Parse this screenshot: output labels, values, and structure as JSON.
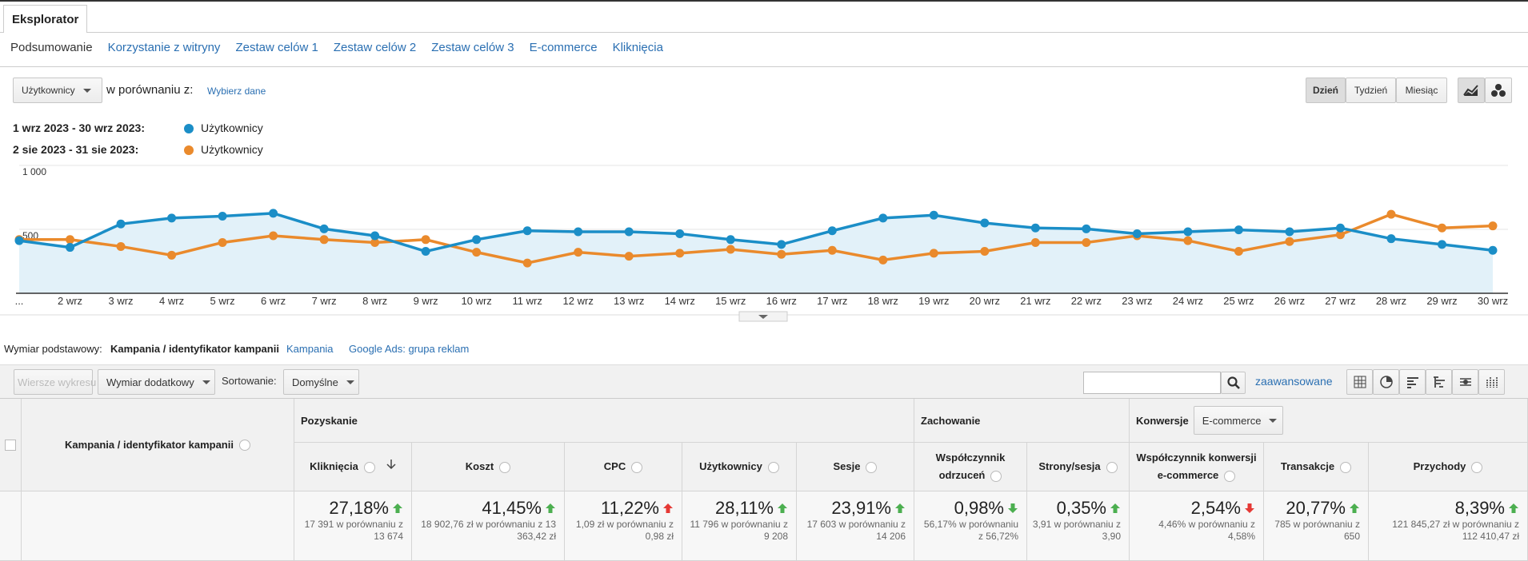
{
  "tabs": {
    "active": "Eksplorator"
  },
  "subtabs": [
    "Podsumowanie",
    "Korzystanie z witryny",
    "Zestaw celów 1",
    "Zestaw celów 2",
    "Zestaw celów 3",
    "E-commerce",
    "Kliknięcia"
  ],
  "controls": {
    "metric": "Użytkownicy",
    "compare_label": "w porównaniu z:",
    "compare_link": "Wybierz dane",
    "periods": [
      "Dzień",
      "Tydzień",
      "Miesiąc"
    ]
  },
  "chart_data": {
    "type": "line",
    "categories": [
      "...",
      "2 wrz",
      "3 wrz",
      "4 wrz",
      "5 wrz",
      "6 wrz",
      "7 wrz",
      "8 wrz",
      "9 wrz",
      "10 wrz",
      "11 wrz",
      "12 wrz",
      "13 wrz",
      "14 wrz",
      "15 wrz",
      "16 wrz",
      "17 wrz",
      "18 wrz",
      "19 wrz",
      "20 wrz",
      "21 wrz",
      "22 wrz",
      "23 wrz",
      "24 wrz",
      "25 wrz",
      "26 wrz",
      "27 wrz",
      "28 wrz",
      "29 wrz",
      "30 wrz"
    ],
    "series": [
      {
        "period": "1 wrz 2023 - 30 wrz 2023:",
        "name": "Użytkownicy",
        "color": "#1b8ec7",
        "area": true,
        "area_color": "#e2f1f9",
        "values": [
          412,
          359,
          542,
          588,
          603,
          626,
          504,
          450,
          328,
          420,
          489,
          481,
          481,
          466,
          420,
          382,
          489,
          588,
          611,
          550,
          511,
          504,
          466,
          481,
          496,
          481,
          511,
          427,
          382,
          336
        ]
      },
      {
        "period": "2 sie 2023 - 31 sie 2023:",
        "name": "Użytkownicy",
        "color": "#ea8a2c",
        "area": false,
        "values": [
          420,
          420,
          366,
          298,
          397,
          450,
          420,
          397,
          420,
          321,
          237,
          321,
          290,
          313,
          344,
          305,
          336,
          260,
          313,
          328,
          397,
          397,
          450,
          412,
          328,
          405,
          458,
          618,
          511,
          527
        ]
      }
    ],
    "ylim": [
      0,
      1000
    ],
    "yticks": [
      500,
      {
        "value": 1000,
        "label": "1 000"
      }
    ],
    "grid": true
  },
  "dimension": {
    "label": "Wymiar podstawowy:",
    "active": "Kampania / identyfikator kampanii",
    "options": [
      "Kampania",
      "Google Ads: grupa reklam"
    ]
  },
  "toolbar": {
    "rows_button": "Wiersze wykresu",
    "secondary": "Wymiar dodatkowy",
    "sort_label": "Sortowanie:",
    "sort_value": "Domyślne",
    "advanced": "zaawansowane"
  },
  "table": {
    "dimension_header": "Kampania / identyfikator kampanii",
    "groups": [
      {
        "name": "Pozyskanie",
        "columns": [
          {
            "name": "Kliknięcia",
            "value": "27,18%",
            "trend": "up",
            "color": "#4caf50",
            "sub": "17 391 w porównaniu z 13 674"
          },
          {
            "name": "Koszt",
            "value": "41,45%",
            "trend": "up",
            "color": "#4caf50",
            "sub": "18 902,76 zł w porównaniu z 13 363,42 zł"
          },
          {
            "name": "CPC",
            "value": "11,22%",
            "trend": "up",
            "color": "#e53935",
            "sub": "1,09 zł w porównaniu z 0,98 zł"
          },
          {
            "name": "Użytkownicy",
            "value": "28,11%",
            "trend": "up",
            "color": "#4caf50",
            "sub": "11 796 w porównaniu z 9 208"
          },
          {
            "name": "Sesje",
            "value": "23,91%",
            "trend": "up",
            "color": "#4caf50",
            "sub": "17 603 w porównaniu z 14 206"
          }
        ]
      },
      {
        "name": "Zachowanie",
        "columns": [
          {
            "name": "Współczynnik odrzuceń",
            "value": "0,98%",
            "trend": "down",
            "color": "#4caf50",
            "sub": "56,17% w porównaniu z 56,72%"
          },
          {
            "name": "Strony/sesja",
            "value": "0,35%",
            "trend": "up",
            "color": "#4caf50",
            "sub": "3,91 w porównaniu z 3,90"
          }
        ]
      },
      {
        "name": "Konwersje",
        "selector": "E-commerce",
        "columns": [
          {
            "name": "Współczynnik konwersji e-commerce",
            "value": "2,54%",
            "trend": "down",
            "color": "#e53935",
            "sub": "4,46% w porównaniu z 4,58%"
          },
          {
            "name": "Transakcje",
            "value": "20,77%",
            "trend": "up",
            "color": "#4caf50",
            "sub": "785 w porównaniu z 650"
          },
          {
            "name": "Przychody",
            "value": "8,39%",
            "trend": "up",
            "color": "#4caf50",
            "sub": "121 845,27 zł w porównaniu z 112 410,47 zł"
          }
        ]
      }
    ]
  }
}
